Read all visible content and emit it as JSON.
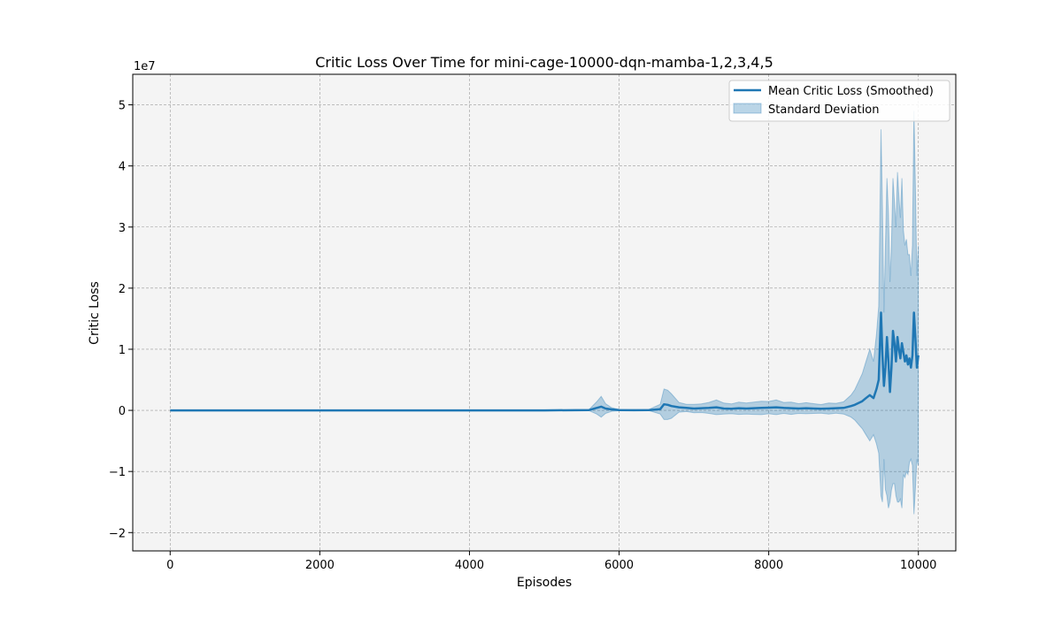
{
  "chart_data": {
    "type": "line",
    "title": "Critic Loss Over Time for mini-cage-10000-dqn-mamba-1,2,3,4,5",
    "xlabel": "Episodes",
    "ylabel": "Critic Loss",
    "y_offset_label": "1e7",
    "xlim": [
      -500,
      10500
    ],
    "ylim": [
      -23000000,
      55000000
    ],
    "x_ticks": [
      0,
      2000,
      4000,
      6000,
      8000,
      10000
    ],
    "x_tick_labels": [
      "0",
      "2000",
      "4000",
      "6000",
      "8000",
      "10000"
    ],
    "y_ticks": [
      -20000000,
      -10000000,
      0,
      10000000,
      20000000,
      30000000,
      40000000,
      50000000
    ],
    "y_tick_labels": [
      "−2",
      "−1",
      "0",
      "1",
      "2",
      "3",
      "4",
      "5"
    ],
    "grid": true,
    "legend_position": "top-right",
    "series": [
      {
        "name": "Mean Critic Loss (Smoothed)",
        "color": "#1f77b4",
        "x": [
          0,
          1000,
          2000,
          3000,
          4000,
          5000,
          5600,
          5700,
          5760,
          5820,
          5900,
          6000,
          6200,
          6400,
          6550,
          6600,
          6650,
          6700,
          6800,
          6900,
          7000,
          7100,
          7200,
          7300,
          7400,
          7500,
          7600,
          7700,
          7800,
          7900,
          8000,
          8100,
          8200,
          8300,
          8400,
          8500,
          8600,
          8700,
          8800,
          8900,
          9000,
          9100,
          9150,
          9200,
          9250,
          9300,
          9350,
          9400,
          9440,
          9470,
          9500,
          9520,
          9540,
          9560,
          9580,
          9600,
          9620,
          9640,
          9660,
          9680,
          9700,
          9720,
          9740,
          9760,
          9780,
          9800,
          9820,
          9840,
          9860,
          9880,
          9900,
          9920,
          9940,
          9960,
          9980,
          10000
        ],
        "mean": [
          0,
          0,
          0,
          0,
          0,
          0,
          50000,
          400000,
          600000,
          300000,
          150000,
          50000,
          20000,
          50000,
          200000,
          1000000,
          900000,
          700000,
          500000,
          400000,
          300000,
          350000,
          400000,
          500000,
          300000,
          250000,
          350000,
          300000,
          350000,
          400000,
          450000,
          500000,
          400000,
          350000,
          300000,
          350000,
          300000,
          250000,
          300000,
          350000,
          400000,
          700000,
          900000,
          1200000,
          1500000,
          2000000,
          2500000,
          2000000,
          3500000,
          5000000,
          16000000,
          9000000,
          4000000,
          7000000,
          12000000,
          8000000,
          3000000,
          7000000,
          13000000,
          11000000,
          8000000,
          12000000,
          10000000,
          8500000,
          11000000,
          9500000,
          8000000,
          9000000,
          7500000,
          8500000,
          7000000,
          9000000,
          16000000,
          12000000,
          7000000,
          9000000
        ],
        "std": [
          0,
          0,
          0,
          0,
          0,
          0,
          100000,
          1000000,
          1700000,
          800000,
          300000,
          100000,
          50000,
          100000,
          800000,
          2500000,
          2400000,
          2000000,
          800000,
          600000,
          700000,
          700000,
          900000,
          1200000,
          900000,
          800000,
          1000000,
          900000,
          1000000,
          1100000,
          1000000,
          1200000,
          900000,
          1000000,
          800000,
          900000,
          800000,
          700000,
          900000,
          800000,
          1000000,
          1800000,
          2500000,
          3500000,
          4500000,
          6000000,
          7500000,
          6000000,
          9000000,
          12000000,
          30000000,
          24000000,
          12000000,
          20000000,
          26000000,
          24000000,
          18000000,
          20000000,
          25000000,
          23000000,
          22000000,
          27000000,
          25000000,
          23000000,
          27000000,
          20000000,
          19000000,
          19000000,
          18000000,
          17000000,
          15000000,
          18000000,
          33000000,
          25000000,
          15000000,
          18000000
        ]
      }
    ],
    "band_name": "Standard Deviation",
    "band_color": "#1f77b4"
  }
}
